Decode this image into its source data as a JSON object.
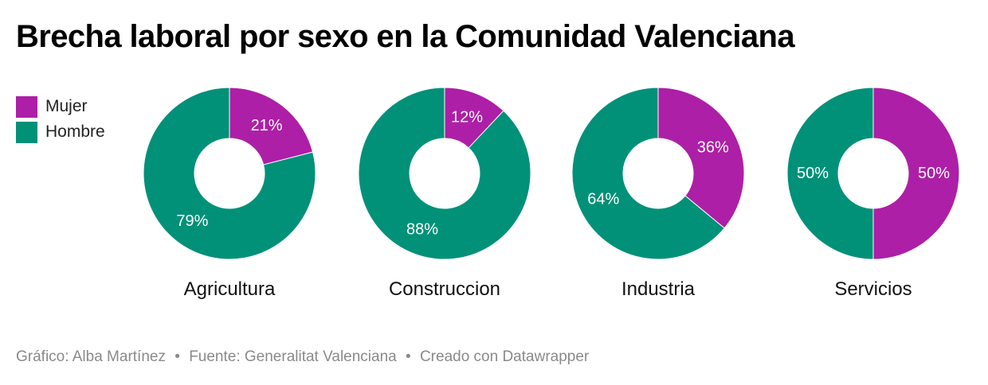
{
  "title": "Brecha laboral por sexo en la Comunidad Valenciana",
  "legend": [
    {
      "label": "Mujer",
      "color": "#ad1fa6"
    },
    {
      "label": "Hombre",
      "color": "#009178"
    }
  ],
  "chart_data": {
    "type": "pie",
    "variant": "donut",
    "title": "Brecha laboral por sexo en la Comunidad Valenciana",
    "legend_position": "top-left",
    "series_names": [
      "Mujer",
      "Hombre"
    ],
    "colors": {
      "Mujer": "#ad1fa6",
      "Hombre": "#009178"
    },
    "charts": [
      {
        "category": "Agricultura",
        "values": {
          "Mujer": 21,
          "Hombre": 79
        },
        "labels": {
          "Mujer": "21%",
          "Hombre": "79%"
        }
      },
      {
        "category": "Construccion",
        "values": {
          "Mujer": 12,
          "Hombre": 88
        },
        "labels": {
          "Mujer": "12%",
          "Hombre": "88%"
        }
      },
      {
        "category": "Industria",
        "values": {
          "Mujer": 36,
          "Hombre": 64
        },
        "labels": {
          "Mujer": "36%",
          "Hombre": "64%"
        }
      },
      {
        "category": "Servicios",
        "values": {
          "Mujer": 50,
          "Hombre": 50
        },
        "labels": {
          "Mujer": "50%",
          "Hombre": "50%"
        }
      }
    ]
  },
  "footer": {
    "credit": "Gráfico: Alba Martínez",
    "source": "Fuente: Generalitat Valenciana",
    "tool": "Creado con Datawrapper",
    "separator": "•"
  }
}
